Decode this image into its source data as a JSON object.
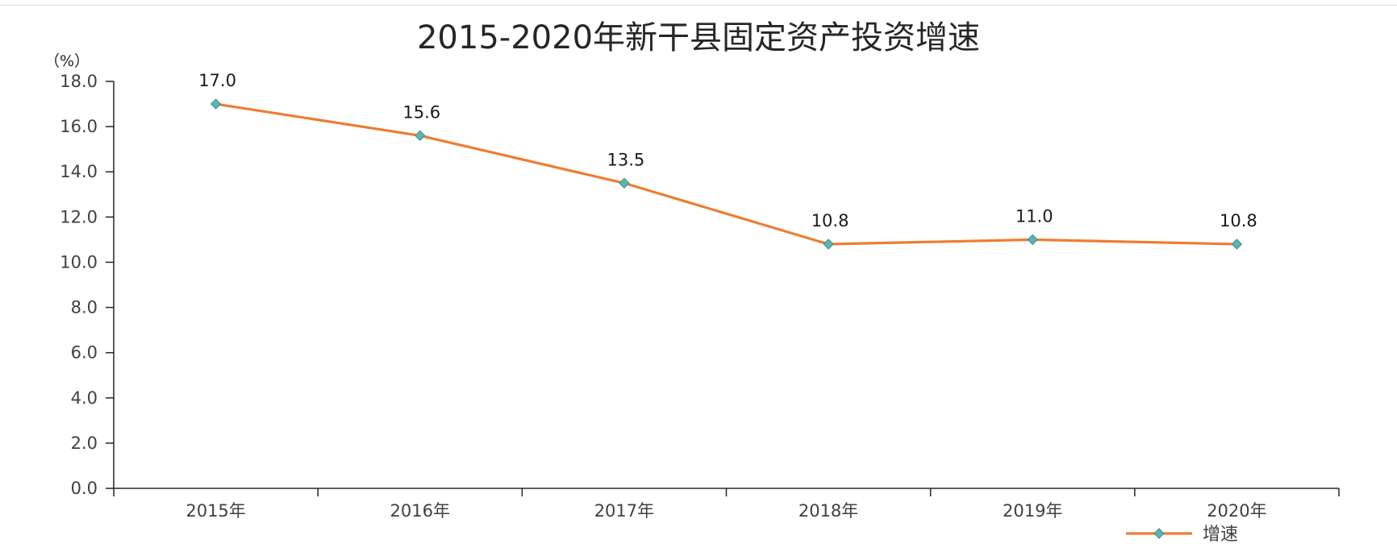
{
  "chart_data": {
    "type": "line",
    "title": "2015-2020年新干县固定资产投资增速",
    "ylabel": "（%）",
    "categories": [
      "2015年",
      "2016年",
      "2017年",
      "2018年",
      "2019年",
      "2020年"
    ],
    "series": [
      {
        "name": "增速",
        "values": [
          17.0,
          15.6,
          13.5,
          10.8,
          11.0,
          10.8
        ],
        "data_labels": [
          "17.0",
          "15.6",
          "13.5",
          "10.8",
          "11.0",
          "10.8"
        ],
        "color": "#ED7D31",
        "marker_color": "#5BB5B0"
      }
    ],
    "ylim": [
      0,
      18
    ],
    "yticks": [
      "0.0",
      "2.0",
      "4.0",
      "6.0",
      "8.0",
      "10.0",
      "12.0",
      "14.0",
      "16.0",
      "18.0"
    ],
    "grid": false,
    "legend": "bottom-right"
  }
}
